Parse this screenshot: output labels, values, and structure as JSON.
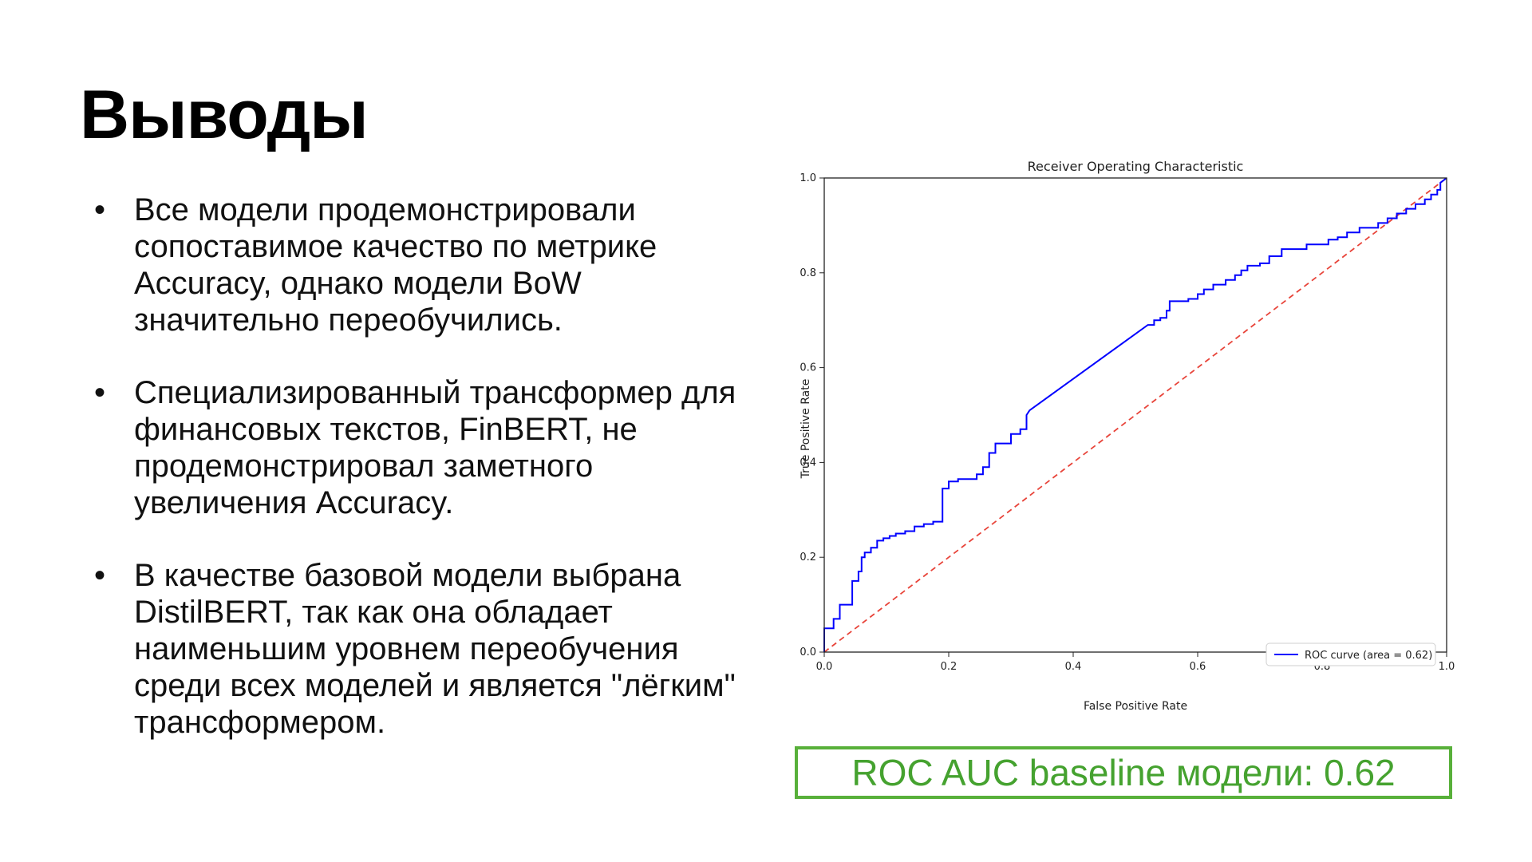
{
  "slide": {
    "title": "Выводы",
    "bullets": [
      {
        "marker": "•",
        "text": "Все модели продемонстрировали сопоставимое качество по метрике Accuracy, однако модели BoW значительно переобучились."
      },
      {
        "marker": "•",
        "text": "Специализированный трансформер для финансовых текстов, FinBERT, не продемонстрировал заметного увеличения Accuracy."
      },
      {
        "marker": "•",
        "text": "В качестве базовой модели выбрана DistilBERT, так как она обладает наименьшим уровнем переобучения среди всех моделей и является \"лёгким\" трансформером."
      }
    ],
    "auc_box": {
      "text": "ROC AUC baseline модели: 0.62",
      "color": "#45a22f",
      "border_color": "#58b03a"
    }
  },
  "chart_data": {
    "type": "line",
    "title": "Receiver Operating Characteristic",
    "xlabel": "False Positive Rate",
    "ylabel": "True Positive Rate",
    "xlim": [
      0.0,
      1.0
    ],
    "ylim": [
      0.0,
      1.0
    ],
    "xticks": [
      "0.0",
      "0.2",
      "0.4",
      "0.6",
      "0.8",
      "1.0"
    ],
    "yticks": [
      "0.0",
      "0.2",
      "0.4",
      "0.6",
      "0.8",
      "1.0"
    ],
    "grid": false,
    "legend_position": "lower-right",
    "series": [
      {
        "name": "ROC curve (area = 0.62)",
        "color": "#0000ff",
        "style": "solid",
        "x": [
          0.0,
          0.0,
          0.015,
          0.015,
          0.025,
          0.025,
          0.045,
          0.045,
          0.055,
          0.055,
          0.06,
          0.06,
          0.065,
          0.065,
          0.075,
          0.075,
          0.085,
          0.085,
          0.095,
          0.095,
          0.105,
          0.105,
          0.115,
          0.115,
          0.13,
          0.13,
          0.145,
          0.145,
          0.16,
          0.16,
          0.175,
          0.175,
          0.19,
          0.19,
          0.2,
          0.2,
          0.215,
          0.215,
          0.245,
          0.245,
          0.255,
          0.255,
          0.265,
          0.265,
          0.275,
          0.275,
          0.3,
          0.3,
          0.315,
          0.315,
          0.325,
          0.325,
          0.33,
          0.52,
          0.53,
          0.53,
          0.54,
          0.54,
          0.55,
          0.55,
          0.555,
          0.555,
          0.585,
          0.585,
          0.6,
          0.6,
          0.61,
          0.61,
          0.625,
          0.625,
          0.645,
          0.645,
          0.66,
          0.66,
          0.67,
          0.67,
          0.68,
          0.68,
          0.7,
          0.7,
          0.715,
          0.715,
          0.735,
          0.735,
          0.775,
          0.775,
          0.81,
          0.81,
          0.825,
          0.825,
          0.84,
          0.84,
          0.86,
          0.86,
          0.89,
          0.89,
          0.905,
          0.905,
          0.92,
          0.92,
          0.935,
          0.935,
          0.95,
          0.95,
          0.965,
          0.965,
          0.975,
          0.975,
          0.985,
          0.985,
          0.99,
          0.99,
          1.0
        ],
        "y": [
          0.0,
          0.05,
          0.05,
          0.07,
          0.07,
          0.1,
          0.1,
          0.15,
          0.15,
          0.17,
          0.17,
          0.2,
          0.2,
          0.21,
          0.21,
          0.22,
          0.22,
          0.235,
          0.235,
          0.24,
          0.24,
          0.245,
          0.245,
          0.25,
          0.25,
          0.255,
          0.255,
          0.265,
          0.265,
          0.27,
          0.27,
          0.275,
          0.275,
          0.345,
          0.345,
          0.36,
          0.36,
          0.365,
          0.365,
          0.375,
          0.375,
          0.39,
          0.39,
          0.42,
          0.42,
          0.44,
          0.44,
          0.46,
          0.46,
          0.47,
          0.47,
          0.5,
          0.51,
          0.69,
          0.69,
          0.7,
          0.7,
          0.705,
          0.705,
          0.72,
          0.72,
          0.74,
          0.74,
          0.745,
          0.745,
          0.755,
          0.755,
          0.765,
          0.765,
          0.775,
          0.775,
          0.785,
          0.785,
          0.795,
          0.795,
          0.805,
          0.805,
          0.815,
          0.815,
          0.82,
          0.82,
          0.835,
          0.835,
          0.85,
          0.85,
          0.86,
          0.86,
          0.87,
          0.87,
          0.875,
          0.875,
          0.885,
          0.885,
          0.895,
          0.895,
          0.905,
          0.905,
          0.915,
          0.915,
          0.925,
          0.925,
          0.935,
          0.935,
          0.945,
          0.945,
          0.955,
          0.955,
          0.965,
          0.965,
          0.975,
          0.975,
          0.99,
          1.0
        ]
      },
      {
        "name": "",
        "color": "#e8443a",
        "style": "dashed",
        "x": [
          0.0,
          1.0
        ],
        "y": [
          0.0,
          1.0
        ]
      }
    ]
  }
}
